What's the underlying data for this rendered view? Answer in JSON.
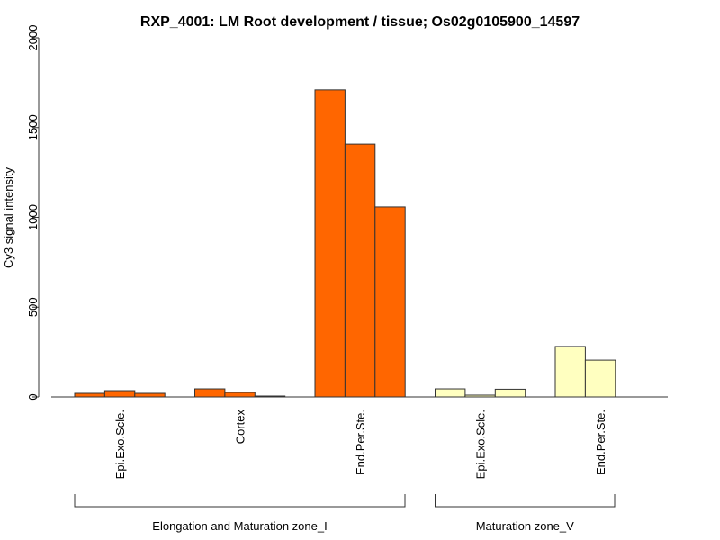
{
  "chart_data": {
    "type": "bar",
    "title": "RXP_4001: LM Root development / tissue; Os02g0105900_14597",
    "xlabel": "",
    "ylabel": "Cy3 signal intensity",
    "ylim": [
      0,
      2000
    ],
    "yticks": [
      0,
      500,
      1000,
      1500,
      2000
    ],
    "grid": false,
    "categories": [
      "Epi.Exo.Scle.",
      "Cortex",
      "End.Per.Ste.",
      "Epi.Exo.Scle.",
      "End.Per.Ste."
    ],
    "groups": [
      {
        "label": "Elongation and Maturation zone_I",
        "categories": [
          0,
          1,
          2
        ]
      },
      {
        "label": "Maturation zone_V",
        "categories": [
          3,
          4
        ]
      }
    ],
    "series_values": [
      [
        20,
        35,
        20
      ],
      [
        45,
        25,
        5
      ],
      [
        1710,
        1408,
        1058
      ],
      [
        45,
        10,
        43
      ],
      [
        281,
        205
      ]
    ],
    "bar_colors": [
      "#FF6600",
      "#FF6600",
      "#FF6600",
      "#FFFFC0",
      "#FFFFC0"
    ]
  }
}
